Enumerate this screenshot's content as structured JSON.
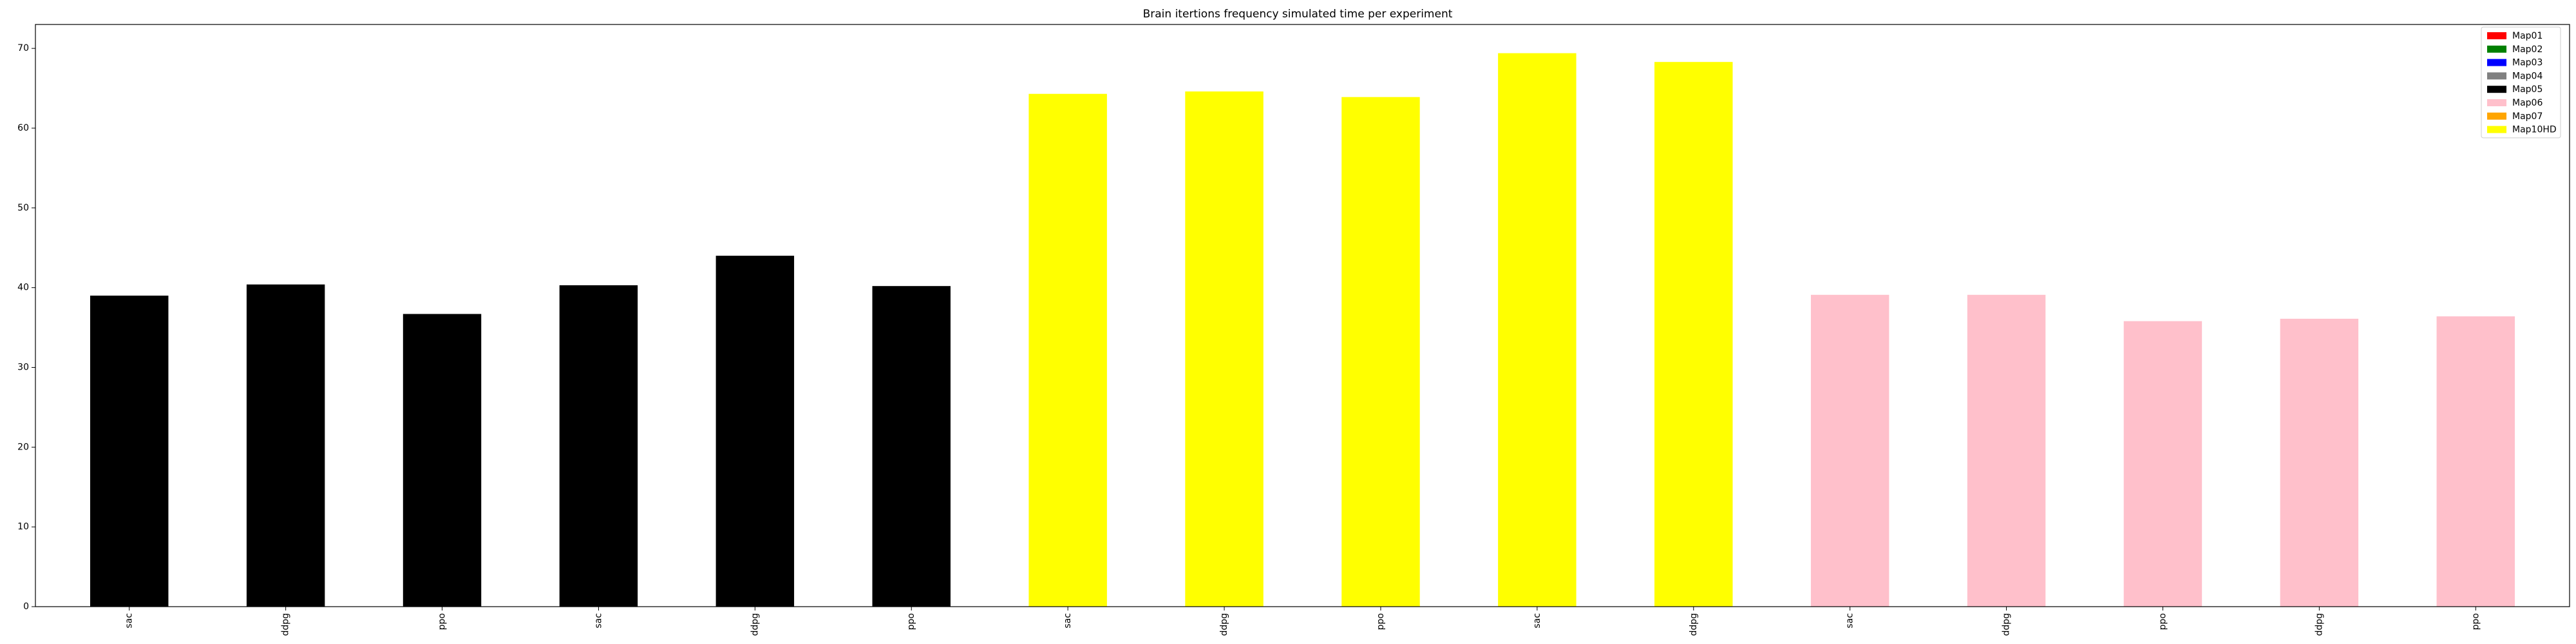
{
  "chart_data": {
    "type": "bar",
    "title": "Brain itertions frequency simulated time per experiment",
    "xlabel": "",
    "ylabel": "",
    "ylim": [
      0,
      73
    ],
    "yticks": [
      0,
      10,
      20,
      30,
      40,
      50,
      60,
      70
    ],
    "grid": false,
    "legend_position": "top-right",
    "legend": [
      {
        "name": "Map01",
        "color": "#ff0000"
      },
      {
        "name": "Map02",
        "color": "#008000"
      },
      {
        "name": "Map03",
        "color": "#0000ff"
      },
      {
        "name": "Map04",
        "color": "#808080"
      },
      {
        "name": "Map05",
        "color": "#000000"
      },
      {
        "name": "Map06",
        "color": "#ffc0cb"
      },
      {
        "name": "Map07",
        "color": "#ffa500"
      },
      {
        "name": "Map10HD",
        "color": "#ffff00"
      }
    ],
    "categories": [
      "sac",
      "ddpg",
      "ppo",
      "sac",
      "ddpg",
      "ppo",
      "sac",
      "ddpg",
      "ppo",
      "sac",
      "ddpg",
      "sac",
      "ddpg",
      "ppo",
      "ddpg",
      "ppo"
    ],
    "values": [
      39.0,
      40.4,
      36.7,
      40.3,
      44.0,
      40.2,
      64.3,
      64.6,
      63.9,
      69.4,
      68.3,
      39.1,
      39.1,
      35.8,
      36.1,
      36.4
    ],
    "bar_colors": [
      "#000000",
      "#000000",
      "#000000",
      "#000000",
      "#000000",
      "#000000",
      "#ffff00",
      "#ffff00",
      "#ffff00",
      "#ffff00",
      "#ffff00",
      "#ffc0cb",
      "#ffc0cb",
      "#ffc0cb",
      "#ffc0cb",
      "#ffc0cb"
    ]
  }
}
